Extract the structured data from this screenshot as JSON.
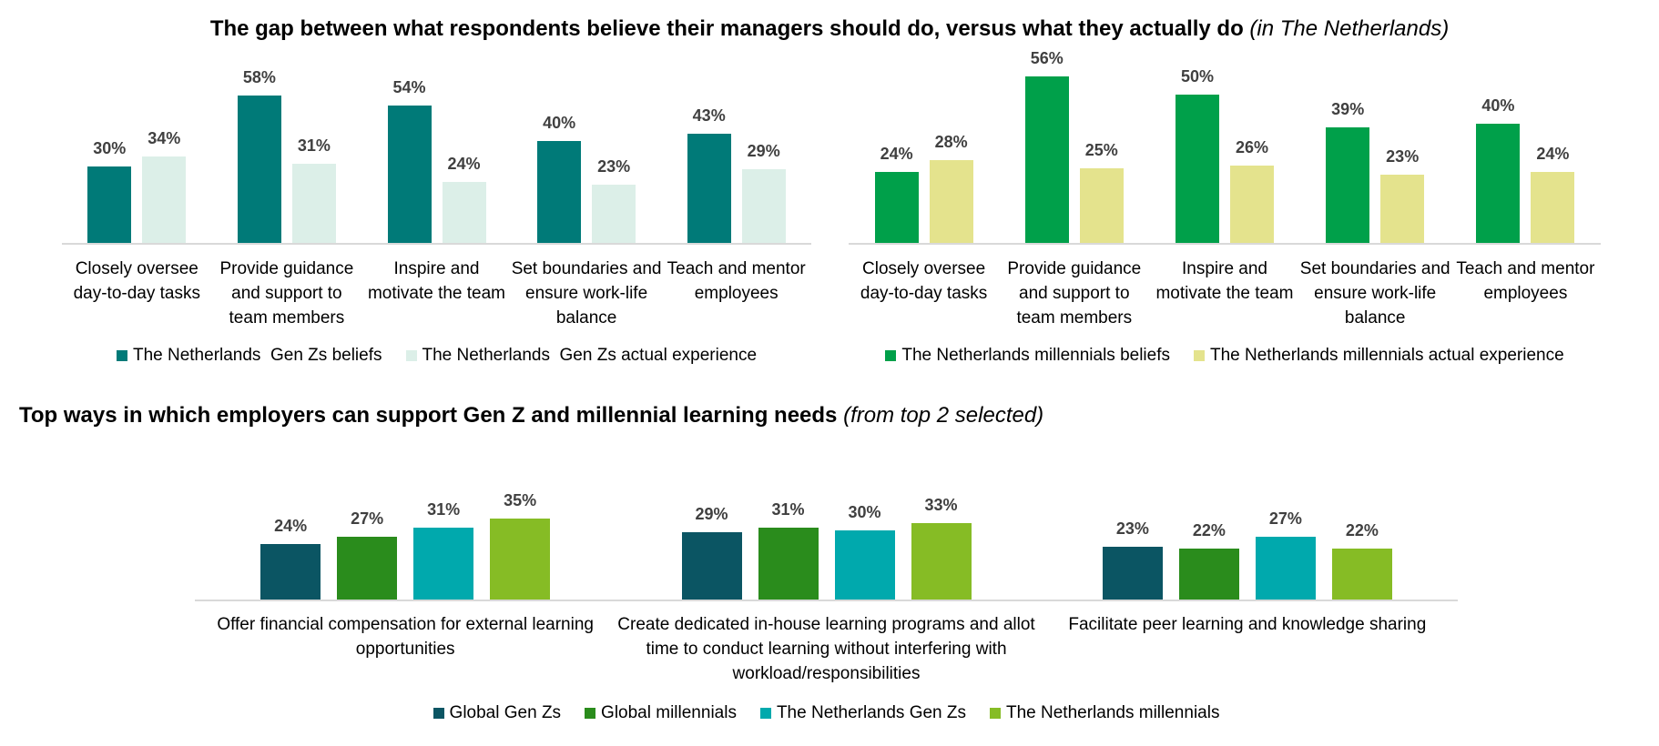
{
  "chart_data": [
    {
      "type": "bar",
      "title": "The gap between what respondents believe their managers should do, versus what they actually do",
      "title_note": "(in The Netherlands)",
      "categories": [
        "Closely oversee day-to-day tasks",
        "Provide guidance and support to team members",
        "Inspire and motivate the team",
        "Set boundaries and ensure work-life balance",
        "Teach and mentor employees"
      ],
      "series": [
        {
          "name": "The Netherlands  Gen Zs beliefs",
          "color": "#007a78",
          "values": [
            30,
            58,
            54,
            40,
            43
          ],
          "value_labels": [
            "30%",
            "58%",
            "54%",
            "40%",
            "43%"
          ]
        },
        {
          "name": "The Netherlands  Gen Zs actual experience",
          "color": "#dcefe8",
          "values": [
            34,
            31,
            24,
            23,
            29
          ],
          "value_labels": [
            "34%",
            "31%",
            "24%",
            "23%",
            "29%"
          ]
        }
      ]
    },
    {
      "type": "bar",
      "categories": [
        "Closely oversee day-to-day tasks",
        "Provide guidance and support to team members",
        "Inspire and motivate the team",
        "Set boundaries and ensure work-life balance",
        "Teach and mentor employees"
      ],
      "series": [
        {
          "name": "The Netherlands millennials beliefs",
          "color": "#00a04a",
          "values": [
            24,
            56,
            50,
            39,
            40
          ],
          "value_labels": [
            "24%",
            "56%",
            "50%",
            "39%",
            "40%"
          ]
        },
        {
          "name": "The Netherlands millennials actual experience",
          "color": "#e4e38d",
          "values": [
            28,
            25,
            26,
            23,
            24
          ],
          "value_labels": [
            "28%",
            "25%",
            "26%",
            "23%",
            "24%"
          ]
        }
      ]
    },
    {
      "type": "bar",
      "title": "Top ways in which employers can support Gen Z and millennial learning needs",
      "title_note": "(from top 2 selected)",
      "categories": [
        "Offer financial compensation for external learning opportunities",
        "Create dedicated in-house learning programs and allot time to conduct learning without interfering with workload/responsibilities",
        "Facilitate peer learning and knowledge sharing"
      ],
      "series": [
        {
          "name": "Global Gen Zs",
          "color": "#0b5563",
          "values": [
            24,
            29,
            23
          ],
          "value_labels": [
            "24%",
            "29%",
            "23%"
          ]
        },
        {
          "name": "Global millennials",
          "color": "#2a8c1c",
          "values": [
            27,
            31,
            22
          ],
          "value_labels": [
            "27%",
            "31%",
            "22%"
          ]
        },
        {
          "name": "The Netherlands Gen Zs",
          "color": "#00a9ad",
          "values": [
            31,
            30,
            27
          ],
          "value_labels": [
            "31%",
            "30%",
            "27%"
          ]
        },
        {
          "name": "The Netherlands millennials",
          "color": "#86bc25",
          "values": [
            35,
            33,
            22
          ],
          "value_labels": [
            "35%",
            "33%",
            "22%"
          ]
        }
      ]
    }
  ]
}
